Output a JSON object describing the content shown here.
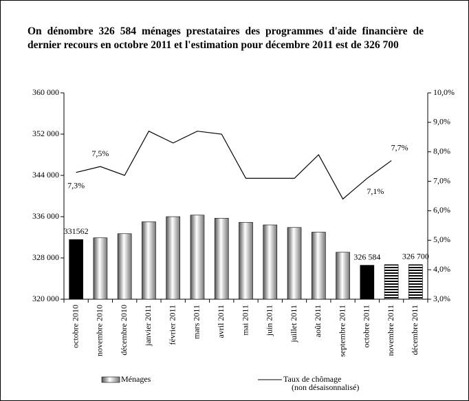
{
  "chart_data": {
    "type": "bar_line",
    "title": "On dénombre 326 584 ménages prestataires des programmes d'aide financière de dernier recours en octobre 2011 et l'estimation pour décembre 2011 est de 326 700",
    "categories": [
      "octobre 2010",
      "novembre 2010",
      "décembre 2010",
      "janvier 2011",
      "février 2011",
      "mars 2011",
      "avril 2011",
      "mai 2011",
      "juin 2011",
      "juillet 2011",
      "août 2011",
      "septembre 2011",
      "octobre 2011",
      "novembre 2011",
      "décembre 2011"
    ],
    "series": [
      {
        "name": "Ménages",
        "type": "bar",
        "color": "#c0c0c0",
        "values": [
          331562,
          331900,
          332700,
          335000,
          336000,
          336300,
          335700,
          334900,
          334400,
          333900,
          333000,
          329100,
          326584,
          326700,
          326700
        ],
        "value_labels": [
          "331562",
          null,
          null,
          null,
          null,
          null,
          null,
          null,
          null,
          null,
          null,
          null,
          "326 584",
          null,
          "326 700"
        ],
        "bar_styles": [
          "solid",
          "gradient",
          "gradient",
          "gradient",
          "gradient",
          "gradient",
          "gradient",
          "gradient",
          "gradient",
          "gradient",
          "gradient",
          "gradient",
          "solid",
          "hatched",
          "hatched"
        ],
        "solid_color": "#000000"
      },
      {
        "name": "Taux de chômage",
        "type": "line",
        "axis": "y2",
        "color": "#000000",
        "values": [
          7.3,
          7.5,
          7.2,
          8.7,
          8.3,
          8.7,
          8.6,
          7.1,
          7.1,
          7.1,
          7.9,
          6.4,
          7.1,
          7.7,
          null
        ],
        "value_labels": [
          "7,3%",
          "7,5%",
          null,
          null,
          null,
          null,
          null,
          null,
          null,
          null,
          null,
          null,
          "7,1%",
          "7,7%",
          null
        ]
      }
    ],
    "legend_note": "(non désaisonnalisé)",
    "ylim": [
      320000,
      360000
    ],
    "yticks": [
      {
        "value": 320000,
        "label": "320 000"
      },
      {
        "value": 328000,
        "label": "328 000"
      },
      {
        "value": 336000,
        "label": "336 000"
      },
      {
        "value": 344000,
        "label": "344 000"
      },
      {
        "value": 352000,
        "label": "352 000"
      },
      {
        "value": 360000,
        "label": "360 000"
      }
    ],
    "y2lim": [
      3,
      10
    ],
    "y2ticks": [
      {
        "value": 3,
        "label": "3,0%"
      },
      {
        "value": 4,
        "label": "4,0%"
      },
      {
        "value": 5,
        "label": "5,0%"
      },
      {
        "value": 6,
        "label": "6,0%"
      },
      {
        "value": 7,
        "label": "7,0%"
      },
      {
        "value": 8,
        "label": "8,0%"
      },
      {
        "value": 9,
        "label": "9,0%"
      },
      {
        "value": 10,
        "label": "10,0%"
      }
    ]
  }
}
